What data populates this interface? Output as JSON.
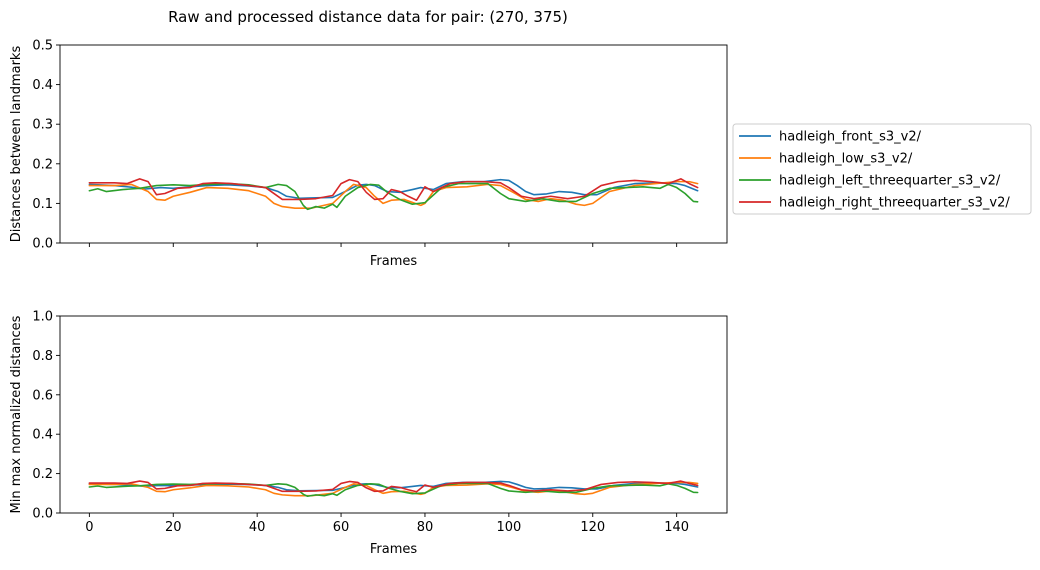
{
  "figure": {
    "title": "Raw and processed distance data for pair: (270, 375)"
  },
  "chart_data": [
    {
      "type": "line",
      "title": "Raw and processed distance data for pair: (270, 375)",
      "xlabel": "Frames",
      "ylabel": "Distances between landmarks",
      "xlim": [
        -7,
        152
      ],
      "ylim": [
        0,
        0.5
      ],
      "xticks": [
        0,
        20,
        40,
        60,
        80,
        100,
        120,
        140
      ],
      "show_xticklabels": false,
      "yticks": [
        0.0,
        0.1,
        0.2,
        0.3,
        0.4,
        0.5
      ],
      "ytick_labels": [
        "0.0",
        "0.1",
        "0.2",
        "0.3",
        "0.4",
        "0.5"
      ],
      "grid": false,
      "legend": "right",
      "series": [
        {
          "name": "hadleigh_front_s3_v2/",
          "color": "#1f77b4",
          "x": [
            0,
            6,
            10,
            13,
            17,
            20,
            24,
            28,
            33,
            38,
            42,
            45,
            47,
            50,
            54,
            58,
            61,
            64,
            66,
            68,
            71,
            74,
            77,
            79,
            82,
            85,
            89,
            94,
            98,
            100,
            102,
            104,
            106,
            109,
            112,
            115,
            118,
            121,
            125,
            130,
            135,
            140,
            142,
            145
          ],
          "values": [
            0.148,
            0.145,
            0.141,
            0.136,
            0.14,
            0.138,
            0.142,
            0.145,
            0.147,
            0.144,
            0.14,
            0.13,
            0.118,
            0.113,
            0.114,
            0.115,
            0.13,
            0.146,
            0.148,
            0.145,
            0.13,
            0.128,
            0.135,
            0.14,
            0.135,
            0.15,
            0.155,
            0.155,
            0.16,
            0.158,
            0.145,
            0.13,
            0.122,
            0.124,
            0.13,
            0.128,
            0.122,
            0.122,
            0.14,
            0.15,
            0.152,
            0.15,
            0.145,
            0.132
          ]
        },
        {
          "name": "hadleigh_low_s3_v2/",
          "color": "#ff7f0e",
          "x": [
            0,
            6,
            10,
            14,
            16,
            18,
            20,
            24,
            28,
            33,
            38,
            42,
            44,
            46,
            49,
            53,
            58,
            61,
            63,
            66,
            68,
            70,
            72,
            75,
            79,
            80,
            82,
            85,
            90,
            95,
            98,
            101,
            104,
            107,
            110,
            113,
            116,
            118,
            120,
            124,
            130,
            135,
            140,
            143,
            145
          ],
          "values": [
            0.145,
            0.145,
            0.148,
            0.13,
            0.11,
            0.108,
            0.118,
            0.128,
            0.14,
            0.138,
            0.132,
            0.118,
            0.1,
            0.092,
            0.088,
            0.088,
            0.1,
            0.13,
            0.148,
            0.14,
            0.118,
            0.1,
            0.108,
            0.11,
            0.095,
            0.1,
            0.13,
            0.14,
            0.142,
            0.148,
            0.145,
            0.128,
            0.11,
            0.105,
            0.112,
            0.108,
            0.098,
            0.095,
            0.1,
            0.13,
            0.145,
            0.15,
            0.155,
            0.155,
            0.15
          ]
        },
        {
          "name": "hadleigh_left_threequarter_s3_v2/",
          "color": "#2ca02c",
          "x": [
            0,
            2,
            4,
            8,
            12,
            16,
            20,
            24,
            28,
            33,
            38,
            42,
            45,
            47,
            49,
            51,
            52,
            54,
            56,
            58,
            59,
            61,
            64,
            67,
            69,
            71,
            74,
            77,
            80,
            84,
            88,
            92,
            95,
            98,
            100,
            104,
            108,
            112,
            116,
            120,
            124,
            128,
            132,
            136,
            138,
            140,
            142,
            144,
            145
          ],
          "values": [
            0.132,
            0.137,
            0.13,
            0.135,
            0.138,
            0.145,
            0.147,
            0.145,
            0.148,
            0.15,
            0.147,
            0.14,
            0.148,
            0.145,
            0.13,
            0.095,
            0.085,
            0.092,
            0.088,
            0.098,
            0.09,
            0.118,
            0.14,
            0.148,
            0.146,
            0.128,
            0.11,
            0.098,
            0.102,
            0.14,
            0.15,
            0.15,
            0.15,
            0.125,
            0.112,
            0.105,
            0.112,
            0.105,
            0.105,
            0.125,
            0.138,
            0.14,
            0.142,
            0.138,
            0.148,
            0.14,
            0.125,
            0.105,
            0.104
          ]
        },
        {
          "name": "hadleigh_right_threequarter_s3_v2/",
          "color": "#d62728",
          "x": [
            0,
            6,
            9,
            12,
            14,
            16,
            18,
            21,
            24,
            27,
            30,
            34,
            38,
            42,
            46,
            50,
            54,
            58,
            60,
            62,
            64,
            66,
            68,
            70,
            72,
            74,
            76,
            78,
            80,
            82,
            86,
            90,
            94,
            98,
            100,
            103,
            106,
            110,
            114,
            118,
            122,
            126,
            130,
            134,
            138,
            141,
            143,
            145
          ],
          "values": [
            0.152,
            0.152,
            0.15,
            0.162,
            0.155,
            0.122,
            0.125,
            0.138,
            0.14,
            0.15,
            0.152,
            0.15,
            0.145,
            0.14,
            0.11,
            0.11,
            0.112,
            0.12,
            0.15,
            0.16,
            0.155,
            0.128,
            0.11,
            0.112,
            0.135,
            0.13,
            0.118,
            0.108,
            0.142,
            0.13,
            0.15,
            0.155,
            0.155,
            0.152,
            0.14,
            0.118,
            0.112,
            0.118,
            0.112,
            0.118,
            0.145,
            0.155,
            0.158,
            0.155,
            0.15,
            0.162,
            0.15,
            0.14
          ]
        }
      ]
    },
    {
      "type": "line",
      "xlabel": "Frames",
      "ylabel": "Min max normalized distances",
      "xlim": [
        -7,
        152
      ],
      "ylim": [
        0,
        1.0
      ],
      "xticks": [
        0,
        20,
        40,
        60,
        80,
        100,
        120,
        140
      ],
      "xtick_labels": [
        "0",
        "20",
        "40",
        "60",
        "80",
        "100",
        "120",
        "140"
      ],
      "show_xticklabels": true,
      "yticks": [
        0.0,
        0.2,
        0.4,
        0.6,
        0.8,
        1.0
      ],
      "ytick_labels": [
        "0.0",
        "0.2",
        "0.4",
        "0.6",
        "0.8",
        "1.0"
      ],
      "grid": false,
      "series": [
        {
          "name": "hadleigh_front_s3_v2/",
          "color": "#1f77b4",
          "x": [
            0,
            6,
            10,
            13,
            17,
            20,
            24,
            28,
            33,
            38,
            42,
            45,
            47,
            50,
            54,
            58,
            61,
            64,
            66,
            68,
            71,
            74,
            77,
            79,
            82,
            85,
            89,
            94,
            98,
            100,
            102,
            104,
            106,
            109,
            112,
            115,
            118,
            121,
            125,
            130,
            135,
            140,
            142,
            145
          ],
          "values": [
            0.148,
            0.145,
            0.141,
            0.136,
            0.14,
            0.138,
            0.142,
            0.145,
            0.147,
            0.144,
            0.14,
            0.13,
            0.118,
            0.113,
            0.114,
            0.115,
            0.13,
            0.146,
            0.148,
            0.145,
            0.13,
            0.128,
            0.135,
            0.14,
            0.135,
            0.15,
            0.155,
            0.155,
            0.16,
            0.158,
            0.145,
            0.13,
            0.122,
            0.124,
            0.13,
            0.128,
            0.122,
            0.122,
            0.14,
            0.15,
            0.152,
            0.15,
            0.145,
            0.132
          ]
        },
        {
          "name": "hadleigh_low_s3_v2/",
          "color": "#ff7f0e",
          "x": [
            0,
            6,
            10,
            14,
            16,
            18,
            20,
            24,
            28,
            33,
            38,
            42,
            44,
            46,
            49,
            53,
            58,
            61,
            63,
            66,
            68,
            70,
            72,
            75,
            79,
            80,
            82,
            85,
            90,
            95,
            98,
            101,
            104,
            107,
            110,
            113,
            116,
            118,
            120,
            124,
            130,
            135,
            140,
            143,
            145
          ],
          "values": [
            0.145,
            0.145,
            0.148,
            0.13,
            0.11,
            0.108,
            0.118,
            0.128,
            0.14,
            0.138,
            0.132,
            0.118,
            0.1,
            0.092,
            0.088,
            0.088,
            0.1,
            0.13,
            0.148,
            0.14,
            0.118,
            0.1,
            0.108,
            0.11,
            0.095,
            0.1,
            0.13,
            0.14,
            0.142,
            0.148,
            0.145,
            0.128,
            0.11,
            0.105,
            0.112,
            0.108,
            0.098,
            0.095,
            0.1,
            0.13,
            0.145,
            0.15,
            0.155,
            0.155,
            0.15
          ]
        },
        {
          "name": "hadleigh_left_threequarter_s3_v2/",
          "color": "#2ca02c",
          "x": [
            0,
            2,
            4,
            8,
            12,
            16,
            20,
            24,
            28,
            33,
            38,
            42,
            45,
            47,
            49,
            51,
            52,
            54,
            56,
            58,
            59,
            61,
            64,
            67,
            69,
            71,
            74,
            77,
            80,
            84,
            88,
            92,
            95,
            98,
            100,
            104,
            108,
            112,
            116,
            120,
            124,
            128,
            132,
            136,
            138,
            140,
            142,
            144,
            145
          ],
          "values": [
            0.132,
            0.137,
            0.13,
            0.135,
            0.138,
            0.145,
            0.147,
            0.145,
            0.148,
            0.15,
            0.147,
            0.14,
            0.148,
            0.145,
            0.13,
            0.095,
            0.085,
            0.092,
            0.088,
            0.098,
            0.09,
            0.118,
            0.14,
            0.148,
            0.146,
            0.128,
            0.11,
            0.098,
            0.102,
            0.14,
            0.15,
            0.15,
            0.15,
            0.125,
            0.112,
            0.105,
            0.112,
            0.105,
            0.105,
            0.125,
            0.138,
            0.14,
            0.142,
            0.138,
            0.148,
            0.14,
            0.125,
            0.105,
            0.104
          ]
        },
        {
          "name": "hadleigh_right_threequarter_s3_v2/",
          "color": "#d62728",
          "x": [
            0,
            6,
            9,
            12,
            14,
            16,
            18,
            21,
            24,
            27,
            30,
            34,
            38,
            42,
            46,
            50,
            54,
            58,
            60,
            62,
            64,
            66,
            68,
            70,
            72,
            74,
            76,
            78,
            80,
            82,
            86,
            90,
            94,
            98,
            100,
            103,
            106,
            110,
            114,
            118,
            122,
            126,
            130,
            134,
            138,
            141,
            143,
            145
          ],
          "values": [
            0.152,
            0.152,
            0.15,
            0.162,
            0.155,
            0.122,
            0.125,
            0.138,
            0.14,
            0.15,
            0.152,
            0.15,
            0.145,
            0.14,
            0.11,
            0.11,
            0.112,
            0.12,
            0.15,
            0.16,
            0.155,
            0.128,
            0.11,
            0.112,
            0.135,
            0.13,
            0.118,
            0.108,
            0.142,
            0.13,
            0.15,
            0.155,
            0.155,
            0.152,
            0.14,
            0.118,
            0.112,
            0.118,
            0.112,
            0.118,
            0.145,
            0.155,
            0.158,
            0.155,
            0.15,
            0.162,
            0.15,
            0.14
          ]
        }
      ]
    }
  ]
}
